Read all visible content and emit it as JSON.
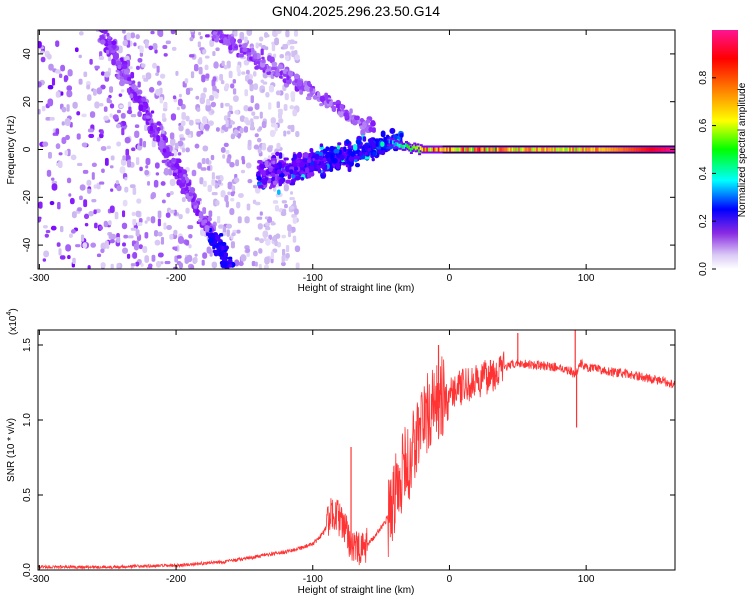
{
  "title": "GN04.2025.296.23.50.G14",
  "chart_data": [
    {
      "type": "heatmap",
      "xlabel": "Height of straight line (km)",
      "ylabel": "Frequency (Hz)",
      "xlim": [
        -301,
        165
      ],
      "ylim": [
        -50,
        50
      ],
      "xticks": [
        -300,
        -200,
        -100,
        0,
        100
      ],
      "yticks": [
        -40,
        -20,
        0,
        20,
        40
      ],
      "grid": false,
      "colorbar": {
        "label": "Normalized spectral amplitude",
        "range": [
          0,
          1
        ],
        "ticks": [
          "0.0",
          "0.2",
          "0.4",
          "0.6",
          "0.8"
        ],
        "colors": [
          "#ffffff",
          "#c9b3f0",
          "#7a00ff",
          "#0000ff",
          "#00ffff",
          "#00ff00",
          "#ffff00",
          "#ff7f00",
          "#ff0000",
          "#ff1493"
        ]
      },
      "features": [
        {
          "name": "descending branch",
          "from": [
            -255,
            50
          ],
          "to": [
            -160,
            -50
          ]
        },
        {
          "name": "upper branch",
          "from": [
            -55,
            8
          ],
          "to": [
            -175,
            50
          ]
        },
        {
          "name": "zero-frequency line",
          "from": [
            -20,
            0
          ],
          "to": [
            165,
            0
          ],
          "peak_amplitude": 1.0
        }
      ]
    },
    {
      "type": "line",
      "xlabel": "Height of straight line (km)",
      "ylabel": "SNR (10 * v/v)",
      "multiplier_label": "(x10",
      "multiplier_exp": "4",
      "xlim": [
        -301,
        165
      ],
      "ylim": [
        0,
        1.6
      ],
      "xticks": [
        -300,
        -200,
        -100,
        0,
        100
      ],
      "yticks": [
        "0.0",
        "0.5",
        "1.0",
        "1.5"
      ],
      "grid": false,
      "color": "#ff3333",
      "profile": {
        "x": [
          -301,
          -250,
          -200,
          -160,
          -120,
          -100,
          -92,
          -85,
          -78,
          -72,
          -65,
          -55,
          -45,
          -40,
          -35,
          -30,
          -25,
          -20,
          -15,
          -10,
          -5,
          0,
          10,
          20,
          30,
          40,
          50,
          60,
          80,
          88,
          92,
          96,
          100,
          120,
          140,
          165
        ],
        "y": [
          0.02,
          0.02,
          0.03,
          0.06,
          0.12,
          0.17,
          0.25,
          0.4,
          0.3,
          0.18,
          0.12,
          0.22,
          0.35,
          0.5,
          0.65,
          0.7,
          0.85,
          1.0,
          1.05,
          1.1,
          1.15,
          1.2,
          1.22,
          1.25,
          1.3,
          1.35,
          1.38,
          1.37,
          1.35,
          1.33,
          1.3,
          1.38,
          1.35,
          1.32,
          1.29,
          1.24
        ]
      },
      "spikes": [
        {
          "x": -72,
          "y": 0.82
        },
        {
          "x": -8,
          "y": 1.5
        },
        {
          "x": 30,
          "y": 1.4
        },
        {
          "x": 50,
          "y": 1.58
        },
        {
          "x": 92,
          "y": 1.6
        },
        {
          "x": 93,
          "y": 0.95
        }
      ]
    }
  ]
}
